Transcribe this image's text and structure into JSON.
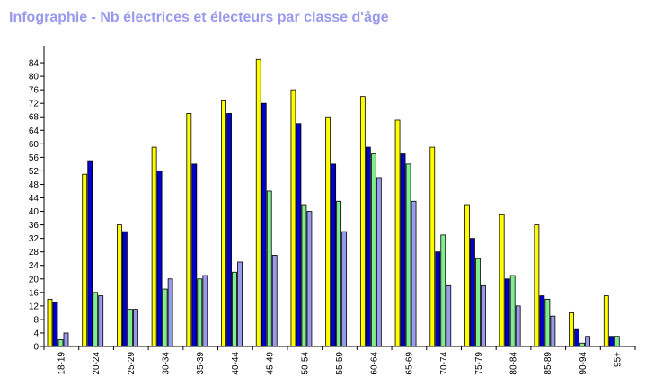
{
  "chart_data": {
    "type": "bar",
    "title": "Infographie - Nb électrices et électeurs par classe d'âge",
    "categories": [
      "18-19",
      "20-24",
      "25-29",
      "30-34",
      "35-39",
      "40-44",
      "45-49",
      "50-54",
      "55-59",
      "60-64",
      "65-69",
      "70-74",
      "75-79",
      "80-84",
      "85-89",
      "90-94",
      "95+"
    ],
    "series": [
      {
        "color": "#ffff00",
        "values": [
          14,
          51,
          36,
          59,
          69,
          73,
          85,
          76,
          68,
          74,
          67,
          59,
          42,
          39,
          36,
          10,
          15
        ]
      },
      {
        "color": "#0000cc",
        "values": [
          13,
          55,
          34,
          52,
          54,
          69,
          72,
          66,
          54,
          59,
          57,
          28,
          32,
          20,
          15,
          5,
          3
        ]
      },
      {
        "color": "#80ee90",
        "values": [
          2,
          16,
          11,
          17,
          20,
          22,
          46,
          42,
          43,
          57,
          54,
          33,
          26,
          21,
          14,
          1,
          3
        ]
      },
      {
        "color": "#9999ee",
        "values": [
          4,
          15,
          11,
          20,
          21,
          25,
          27,
          40,
          34,
          50,
          43,
          18,
          18,
          12,
          9,
          3,
          0
        ]
      }
    ],
    "y_ticks": [
      0,
      4,
      8,
      12,
      16,
      20,
      24,
      28,
      32,
      36,
      40,
      44,
      48,
      52,
      56,
      60,
      64,
      68,
      72,
      76,
      80,
      84
    ],
    "ylim": [
      0,
      88
    ],
    "grid": false,
    "legend": "none"
  }
}
